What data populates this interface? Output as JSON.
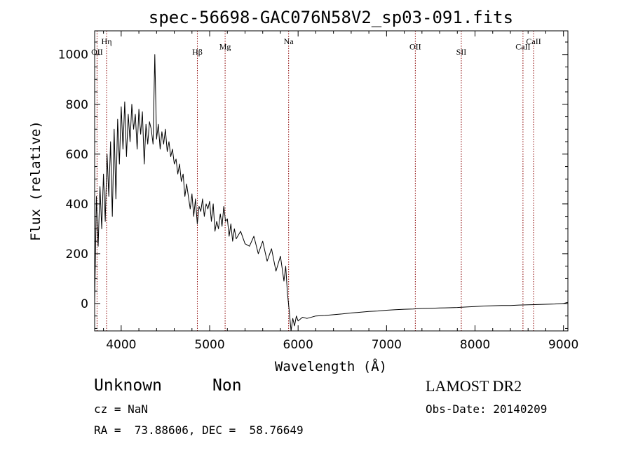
{
  "chart_data": {
    "type": "line",
    "title": "spec-56698-GAC076N58V2_sp03-091.fits",
    "xlabel": "Wavelength (Å)",
    "ylabel": "Flux (relative)",
    "xlim": [
      3700,
      9050
    ],
    "ylim": [
      -110,
      1095
    ],
    "x_ticks": [
      4000,
      5000,
      6000,
      7000,
      8000,
      9000
    ],
    "y_ticks": [
      0,
      200,
      400,
      600,
      800,
      1000
    ],
    "grid": false,
    "line_color": "#000000",
    "marker_color": "#8b0000",
    "series": [
      {
        "x": [
          3700,
          3720,
          3740,
          3760,
          3780,
          3800,
          3820,
          3840,
          3860,
          3880,
          3900,
          3920,
          3940,
          3960,
          3980,
          4000,
          4020,
          4040,
          4060,
          4080,
          4100,
          4120,
          4140,
          4160,
          4180,
          4200,
          4220,
          4240,
          4260,
          4280,
          4300,
          4320,
          4340,
          4360,
          4380,
          4400,
          4420,
          4440,
          4460,
          4480,
          4500,
          4520,
          4540,
          4560,
          4580,
          4600,
          4620,
          4640,
          4660,
          4680,
          4700,
          4720,
          4740,
          4760,
          4780,
          4800,
          4820,
          4840,
          4860,
          4880,
          4900,
          4920,
          4940,
          4960,
          4980,
          5000,
          5020,
          5040,
          5060,
          5080,
          5100,
          5120,
          5140,
          5160,
          5180,
          5200,
          5220,
          5240,
          5260,
          5280,
          5300,
          5350,
          5400,
          5450,
          5500,
          5550,
          5600,
          5650,
          5700,
          5750,
          5800,
          5820,
          5840,
          5860,
          5880,
          5900,
          5920,
          5940,
          5960,
          5980,
          6000,
          6050,
          6100,
          6200,
          6300,
          6400,
          6500,
          6600,
          6700,
          6800,
          6900,
          7000,
          7100,
          7200,
          7300,
          7400,
          7500,
          7600,
          7700,
          7800,
          7900,
          8000,
          8100,
          8200,
          8300,
          8400,
          8500,
          8600,
          8700,
          8800,
          8900,
          9000,
          9050
        ],
        "y": [
          0,
          430,
          230,
          470,
          300,
          520,
          330,
          600,
          430,
          650,
          350,
          700,
          420,
          740,
          560,
          790,
          620,
          810,
          590,
          760,
          650,
          800,
          700,
          760,
          620,
          780,
          680,
          770,
          560,
          720,
          640,
          730,
          700,
          640,
          1000,
          660,
          720,
          620,
          690,
          640,
          700,
          610,
          650,
          590,
          620,
          560,
          580,
          520,
          560,
          490,
          520,
          430,
          480,
          430,
          380,
          440,
          350,
          420,
          320,
          390,
          370,
          420,
          350,
          400,
          380,
          410,
          330,
          400,
          290,
          330,
          300,
          360,
          310,
          390,
          330,
          340,
          270,
          320,
          250,
          300,
          260,
          290,
          240,
          230,
          270,
          200,
          250,
          170,
          220,
          130,
          190,
          140,
          90,
          150,
          40,
          -30,
          -110,
          -60,
          -90,
          -50,
          -70,
          -55,
          -60,
          -50,
          -48,
          -45,
          -42,
          -38,
          -35,
          -32,
          -30,
          -27,
          -25,
          -23,
          -22,
          -20,
          -19,
          -18,
          -17,
          -16,
          -14,
          -12,
          -10,
          -9,
          -8,
          -8,
          -6,
          -5,
          -4,
          -3,
          -2,
          0,
          5
        ]
      }
    ],
    "markers": [
      {
        "label": "OII",
        "x": 3727,
        "row": 2
      },
      {
        "label": "Hη",
        "x": 3835,
        "row": 1
      },
      {
        "label": "Hβ",
        "x": 4861,
        "row": 2
      },
      {
        "label": "Mg",
        "x": 5175,
        "row": 1.5
      },
      {
        "label": "Na",
        "x": 5893,
        "row": 1
      },
      {
        "label": "OII",
        "x": 7325,
        "row": 1.5
      },
      {
        "label": "SII",
        "x": 7845,
        "row": 2
      },
      {
        "label": "CaII",
        "x": 8542,
        "row": 1.5
      },
      {
        "label": "CaII",
        "x": 8662,
        "row": 1
      }
    ]
  },
  "info": {
    "object_class": "Unknown",
    "subclass": "Non",
    "survey": "LAMOST DR2",
    "cz": "cz = NaN",
    "obs_date": "Obs-Date: 20140209",
    "coords": "RA =  73.88606, DEC =  58.76649"
  }
}
